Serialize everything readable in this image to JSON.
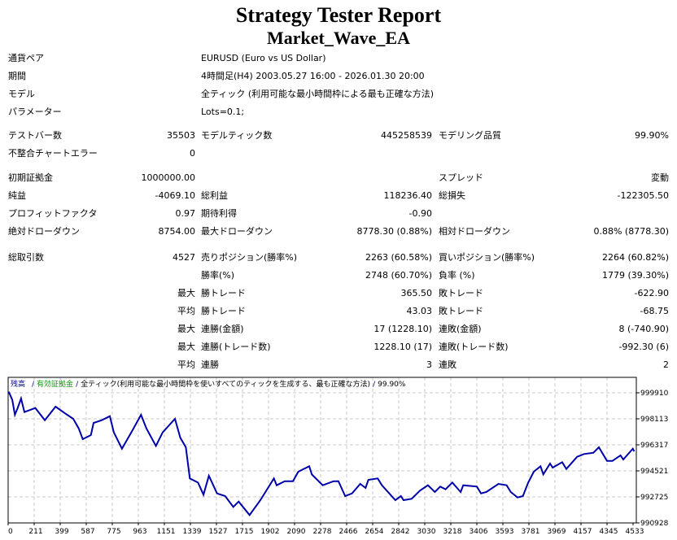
{
  "header": {
    "title": "Strategy Tester Report",
    "ea_name": "Market_Wave_EA"
  },
  "info_rows": [
    {
      "label": "通貨ペア",
      "value": "EURUSD (Euro vs US Dollar)"
    },
    {
      "label": "期間",
      "value": "4時間足(H4) 2003.05.27 16:00 - 2026.01.30 20:00"
    },
    {
      "label": "モデル",
      "value": "全ティック (利用可能な最小時間枠による最も正確な方法)"
    },
    {
      "label": "パラメーター",
      "value": "Lots=0.1;"
    }
  ],
  "stats_rows": [
    [
      "テストバー数",
      "35503",
      "モデルティック数",
      "445258539",
      "モデリング品質",
      "99.90%"
    ],
    [
      "不整合チャートエラー",
      "0",
      "",
      "",
      "",
      ""
    ],
    [
      "初期証拠金",
      "1000000.00",
      "",
      "",
      "スプレッド",
      "変動"
    ],
    [
      "純益",
      "-4069.10",
      "総利益",
      "118236.40",
      "総損失",
      "-122305.50"
    ],
    [
      "プロフィットファクタ",
      "0.97",
      "期待利得",
      "-0.90",
      "",
      ""
    ],
    [
      "絶対ドローダウン",
      "8754.00",
      "最大ドローダウン",
      "8778.30 (0.88%)",
      "相対ドローダウン",
      "0.88% (8778.30)"
    ],
    [
      "総取引数",
      "4527",
      "売りポジション(勝率%)",
      "2263 (60.58%)",
      "買いポジション(勝率%)",
      "2264 (60.82%)"
    ],
    [
      "",
      "",
      "勝率(%)",
      "2748 (60.70%)",
      "負率 (%)",
      "1779 (39.30%)"
    ],
    [
      "",
      "最大",
      "勝トレード",
      "365.50",
      "敗トレード",
      "-622.90"
    ],
    [
      "",
      "平均",
      "勝トレード",
      "43.03",
      "敗トレード",
      "-68.75"
    ],
    [
      "",
      "最大",
      "連勝(金額)",
      "17 (1228.10)",
      "連敗(金額)",
      "8 (-740.90)"
    ],
    [
      "",
      "最大",
      "連勝(トレード数)",
      "1228.10 (17)",
      "連敗(トレード数)",
      "-992.30 (6)"
    ],
    [
      "",
      "平均",
      "連勝",
      "3",
      "連敗",
      "2"
    ]
  ],
  "chart_data": {
    "type": "line",
    "legend": {
      "balance": "残高",
      "equity": "有効証拠金",
      "model": "全ティック(利用可能な最小時間枠を使いすべてのティックを生成する、最も正確な方法)",
      "quality": "99.90%",
      "separator": "/"
    },
    "colors": {
      "balance": "#0000aa",
      "equity": "#00a000",
      "grid": "#c8c8c8"
    },
    "grid": true,
    "xlim": [
      0,
      4533
    ],
    "ylim": [
      990928,
      1000400
    ],
    "x_ticks": [
      "0",
      "211",
      "399",
      "587",
      "775",
      "963",
      "1151",
      "1339",
      "1527",
      "1715",
      "1902",
      "2090",
      "2278",
      "2466",
      "2654",
      "2842",
      "3030",
      "3218",
      "3406",
      "3593",
      "3781",
      "3969",
      "4157",
      "4345",
      "4533"
    ],
    "y_ticks": [
      "999910",
      "998113",
      "996317",
      "994521",
      "992725",
      "990928"
    ],
    "series": [
      {
        "name": "残高",
        "x": [
          4,
          30,
          49,
          69,
          94,
          118,
          197,
          266,
          344,
          413,
          472,
          512,
          541,
          600,
          620,
          679,
          738,
          767,
          826,
          905,
          964,
          1003,
          1072,
          1121,
          1210,
          1249,
          1289,
          1318,
          1377,
          1417,
          1456,
          1515,
          1574,
          1633,
          1672,
          1751,
          1830,
          1928,
          1948,
          2007,
          2066,
          2105,
          2184,
          2203,
          2282,
          2361,
          2396,
          2445,
          2495,
          2554,
          2593,
          2613,
          2681,
          2711,
          2809,
          2849,
          2868,
          2927,
          2987,
          3045,
          3095,
          3134,
          3173,
          3222,
          3282,
          3301,
          3400,
          3430,
          3469,
          3557,
          3616,
          3646,
          3695,
          3734,
          3773,
          3813,
          3862,
          3882,
          3931,
          3950,
          4019,
          4049,
          4127,
          4177,
          4245,
          4285,
          4344,
          4383,
          4442,
          4462,
          4531,
          4541
        ],
        "y": [
          999984,
          999424,
          998395,
          998862,
          999518,
          998581,
          998862,
          998020,
          998956,
          998489,
          998114,
          997459,
          996711,
          996991,
          997833,
          998020,
          998301,
          997178,
          996056,
          997365,
          998395,
          997459,
          996243,
          997178,
          998114,
          996804,
          996149,
          993997,
          993716,
          992874,
          994184,
          992968,
          992781,
          992032,
          992407,
          991471,
          992500,
          993997,
          993529,
          993809,
          993809,
          994465,
          994839,
          994278,
          993529,
          993809,
          993809,
          992781,
          992968,
          993623,
          993342,
          993903,
          993997,
          993529,
          992500,
          992781,
          992500,
          992593,
          993155,
          993529,
          993061,
          993435,
          993248,
          993716,
          993061,
          993529,
          993435,
          992968,
          993061,
          993623,
          993529,
          993061,
          992687,
          992781,
          993716,
          994465,
          994839,
          994278,
          995026,
          994745,
          995119,
          994652,
          995494,
          995681,
          995775,
          996149,
          995213,
          995213,
          995588,
          995307,
          996056,
          995868
        ]
      }
    ]
  }
}
